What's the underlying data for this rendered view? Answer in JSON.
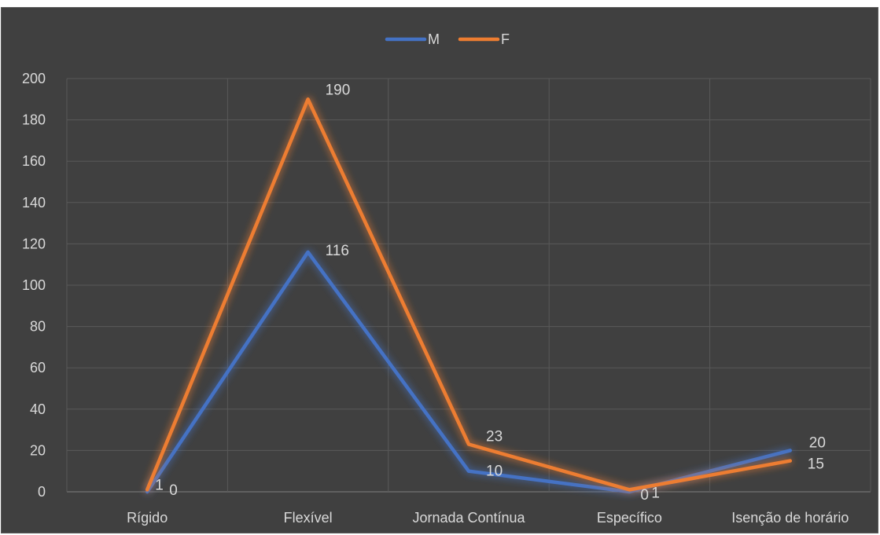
{
  "chart_data": {
    "type": "line",
    "categories": [
      "Rígido",
      "Flexível",
      "Jornada Contínua",
      "Específico",
      "Isenção de horário"
    ],
    "series": [
      {
        "name": "M",
        "values": [
          0,
          116,
          10,
          0,
          20
        ],
        "color": "#4472c4"
      },
      {
        "name": "F",
        "values": [
          1,
          190,
          23,
          1,
          15
        ],
        "color": "#ed7d31"
      }
    ],
    "ylim": [
      0,
      200
    ],
    "yticks": [
      0,
      20,
      40,
      60,
      80,
      100,
      120,
      140,
      160,
      180,
      200
    ],
    "title": "",
    "xlabel": "",
    "ylabel": "",
    "grid": true,
    "legend": "top-center",
    "background": "#404040"
  }
}
